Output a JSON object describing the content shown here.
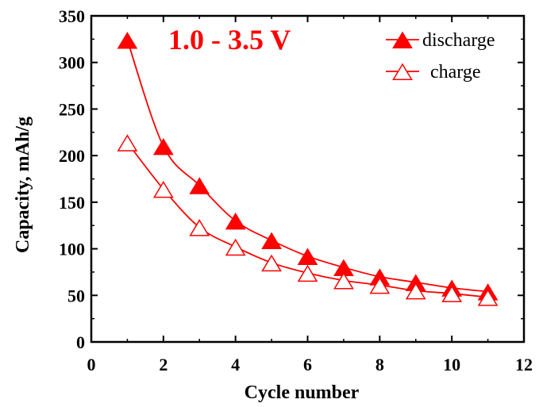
{
  "chart_data": {
    "type": "line",
    "xlabel": "Cycle number",
    "ylabel": "Capacity, mAh/g",
    "xlim": [
      0,
      12
    ],
    "ylim": [
      0,
      350
    ],
    "xticks": [
      0,
      2,
      4,
      6,
      8,
      10,
      12
    ],
    "yticks": [
      0,
      50,
      100,
      150,
      200,
      250,
      300,
      350
    ],
    "grid": false,
    "legend_position": "top-right",
    "annotation": "1.0 - 3.5 V",
    "annotation_color": "#ff0000",
    "line_color": "#ff0000",
    "series": [
      {
        "name": "discharge",
        "marker": "filled-triangle",
        "x": [
          1,
          2,
          3,
          4,
          5,
          6,
          7,
          8,
          9,
          10,
          11
        ],
        "values": [
          324,
          210,
          168,
          130,
          109,
          92,
          80,
          70,
          64,
          58,
          54
        ]
      },
      {
        "name": "charge",
        "marker": "open-triangle",
        "x": [
          1,
          2,
          3,
          4,
          5,
          6,
          7,
          8,
          9,
          10,
          11
        ],
        "values": [
          214,
          164,
          123,
          102,
          85,
          74,
          66,
          61,
          55,
          52,
          48
        ]
      }
    ]
  }
}
